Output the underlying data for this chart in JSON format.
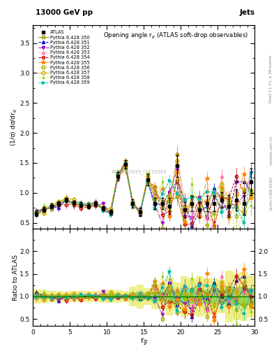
{
  "title_top": "13000 GeV pp",
  "title_right": "Jets",
  "plot_title": "Opening angle r$_g$ (ATLAS soft-drop observables)",
  "xlabel": "r$_g$",
  "ylabel_main": "(1/σ) dσ/dr$_g$",
  "ylabel_ratio": "Ratio to ATLAS",
  "watermark": "ATLAS_2019_I1772062",
  "rivet_label": "Rivet 3.1.10, ≥ 3M events",
  "arxiv_label": "[arXiv:1306.3436]",
  "mcplots_label": "mcplots.cern.ch",
  "xlim": [
    0,
    30
  ],
  "ylim_main": [
    0.4,
    3.8
  ],
  "ylim_ratio": [
    0.35,
    2.5
  ],
  "yticks_main": [
    0.5,
    1.0,
    1.5,
    2.0,
    2.5,
    3.0,
    3.5
  ],
  "yticks_ratio": [
    0.5,
    1.0,
    1.5,
    2.0
  ],
  "x_ticks": [
    0,
    5,
    10,
    15,
    20,
    25,
    30
  ],
  "x_data": [
    0.5,
    1.5,
    2.5,
    3.5,
    4.5,
    5.5,
    6.5,
    7.5,
    8.5,
    9.5,
    10.5,
    11.5,
    12.5,
    13.5,
    14.5,
    15.5,
    16.5,
    17.5,
    18.5,
    19.5,
    20.5,
    21.5,
    22.5,
    23.5,
    24.5,
    25.5,
    26.5,
    27.5,
    28.5,
    29.5
  ],
  "atlas_y": [
    0.65,
    0.72,
    0.78,
    0.82,
    0.88,
    0.83,
    0.8,
    0.78,
    0.82,
    0.74,
    0.68,
    1.28,
    1.48,
    0.82,
    0.68,
    1.22,
    0.82,
    0.82,
    0.78,
    1.45,
    0.72,
    0.82,
    0.72,
    0.82,
    0.82,
    0.88,
    0.78,
    0.88,
    0.82,
    1.18
  ],
  "atlas_yerr": [
    0.04,
    0.04,
    0.04,
    0.04,
    0.04,
    0.04,
    0.04,
    0.04,
    0.04,
    0.04,
    0.04,
    0.07,
    0.07,
    0.07,
    0.07,
    0.09,
    0.09,
    0.09,
    0.13,
    0.18,
    0.13,
    0.13,
    0.13,
    0.13,
    0.13,
    0.13,
    0.18,
    0.18,
    0.18,
    0.22
  ],
  "series": [
    {
      "label": "Pythia 6.428 350",
      "color": "#999900",
      "marker": "s",
      "marker_fill": "none",
      "linestyle": "-"
    },
    {
      "label": "Pythia 6.428 351",
      "color": "#0000cc",
      "marker": "^",
      "marker_fill": "full",
      "linestyle": "--"
    },
    {
      "label": "Pythia 6.428 352",
      "color": "#9900cc",
      "marker": "v",
      "marker_fill": "full",
      "linestyle": "-."
    },
    {
      "label": "Pythia 6.428 353",
      "color": "#ff66aa",
      "marker": "^",
      "marker_fill": "none",
      "linestyle": ":"
    },
    {
      "label": "Pythia 6.428 354",
      "color": "#cc0000",
      "marker": "o",
      "marker_fill": "none",
      "linestyle": "--"
    },
    {
      "label": "Pythia 6.428 355",
      "color": "#ff8800",
      "marker": "*",
      "marker_fill": "full",
      "linestyle": "-."
    },
    {
      "label": "Pythia 6.428 356",
      "color": "#aaaa00",
      "marker": "s",
      "marker_fill": "none",
      "linestyle": ":"
    },
    {
      "label": "Pythia 6.428 357",
      "color": "#ccaa00",
      "marker": "D",
      "marker_fill": "none",
      "linestyle": "-."
    },
    {
      "label": "Pythia 6.428 358",
      "color": "#88cc00",
      "marker": ".",
      "marker_fill": "full",
      "linestyle": ":"
    },
    {
      "label": "Pythia 6.428 359",
      "color": "#00bbaa",
      "marker": ">",
      "marker_fill": "full",
      "linestyle": "--"
    }
  ],
  "band_color_outer": "#dddd00",
  "band_color_inner": "#44cc44",
  "background_color": "#ffffff"
}
